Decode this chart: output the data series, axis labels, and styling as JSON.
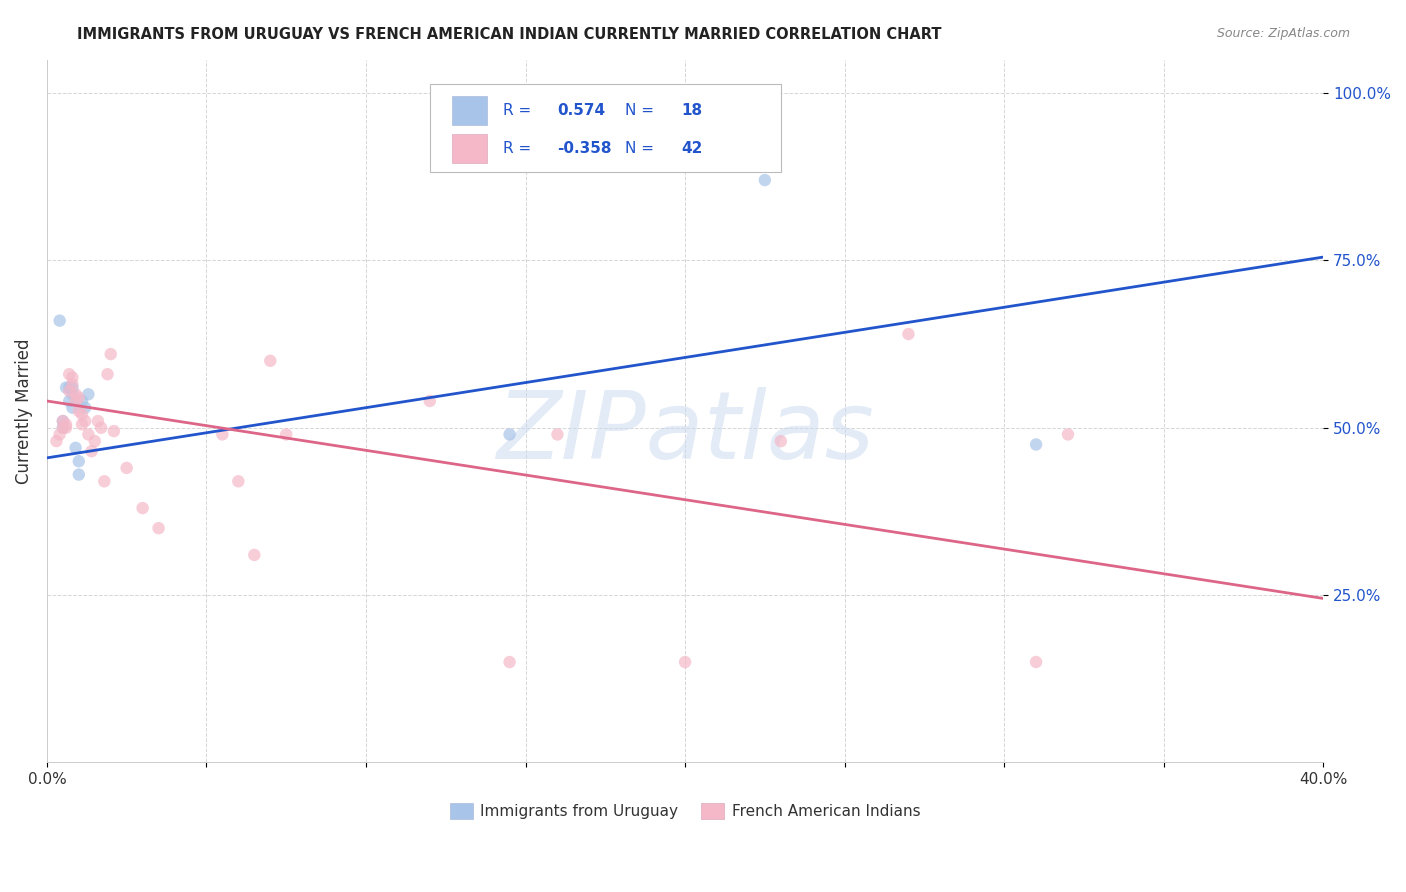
{
  "title": "IMMIGRANTS FROM URUGUAY VS FRENCH AMERICAN INDIAN CURRENTLY MARRIED CORRELATION CHART",
  "source": "Source: ZipAtlas.com",
  "ylabel": "Currently Married",
  "blue_R": "0.574",
  "blue_N": "18",
  "pink_R": "-0.358",
  "pink_N": "42",
  "blue_color": "#a8c4e8",
  "pink_color": "#f4b8c8",
  "blue_line_color": "#2255cc",
  "pink_line_color": "#dd6688",
  "watermark": "ZIPatlas",
  "watermark_color": "#c8d8f0",
  "legend_text_color": "#2255cc",
  "legend_label_color": "#333333",
  "ytick_color": "#2255cc",
  "xlim": [
    0.0,
    0.4
  ],
  "ylim": [
    0.0,
    1.05
  ],
  "blue_points_x": [
    0.004,
    0.005,
    0.005,
    0.006,
    0.007,
    0.007,
    0.008,
    0.008,
    0.008,
    0.009,
    0.01,
    0.01,
    0.011,
    0.012,
    0.013,
    0.145,
    0.225,
    0.31
  ],
  "blue_points_y": [
    0.66,
    0.5,
    0.51,
    0.56,
    0.56,
    0.54,
    0.56,
    0.55,
    0.53,
    0.47,
    0.43,
    0.45,
    0.54,
    0.53,
    0.55,
    0.49,
    0.87,
    0.475
  ],
  "pink_points_x": [
    0.003,
    0.004,
    0.005,
    0.005,
    0.006,
    0.006,
    0.007,
    0.007,
    0.008,
    0.008,
    0.009,
    0.009,
    0.01,
    0.01,
    0.011,
    0.011,
    0.012,
    0.013,
    0.014,
    0.015,
    0.016,
    0.017,
    0.018,
    0.019,
    0.02,
    0.021,
    0.025,
    0.03,
    0.035,
    0.055,
    0.06,
    0.065,
    0.07,
    0.075,
    0.12,
    0.145,
    0.16,
    0.2,
    0.23,
    0.27,
    0.31,
    0.32
  ],
  "pink_points_y": [
    0.48,
    0.49,
    0.5,
    0.51,
    0.505,
    0.5,
    0.58,
    0.555,
    0.565,
    0.575,
    0.54,
    0.55,
    0.545,
    0.525,
    0.505,
    0.52,
    0.51,
    0.49,
    0.465,
    0.48,
    0.51,
    0.5,
    0.42,
    0.58,
    0.61,
    0.495,
    0.44,
    0.38,
    0.35,
    0.49,
    0.42,
    0.31,
    0.6,
    0.49,
    0.54,
    0.15,
    0.49,
    0.15,
    0.48,
    0.64,
    0.15,
    0.49
  ],
  "blue_line_x": [
    0.0,
    0.4
  ],
  "blue_line_y": [
    0.455,
    0.755
  ],
  "pink_line_x": [
    0.0,
    0.4
  ],
  "pink_line_y": [
    0.54,
    0.245
  ],
  "xtick_positions": [
    0.0,
    0.05,
    0.1,
    0.15,
    0.2,
    0.25,
    0.3,
    0.35,
    0.4
  ],
  "ytick_positions": [
    0.25,
    0.5,
    0.75,
    1.0
  ],
  "ytick_labels": [
    "25.0%",
    "50.0%",
    "75.0%",
    "100.0%"
  ]
}
